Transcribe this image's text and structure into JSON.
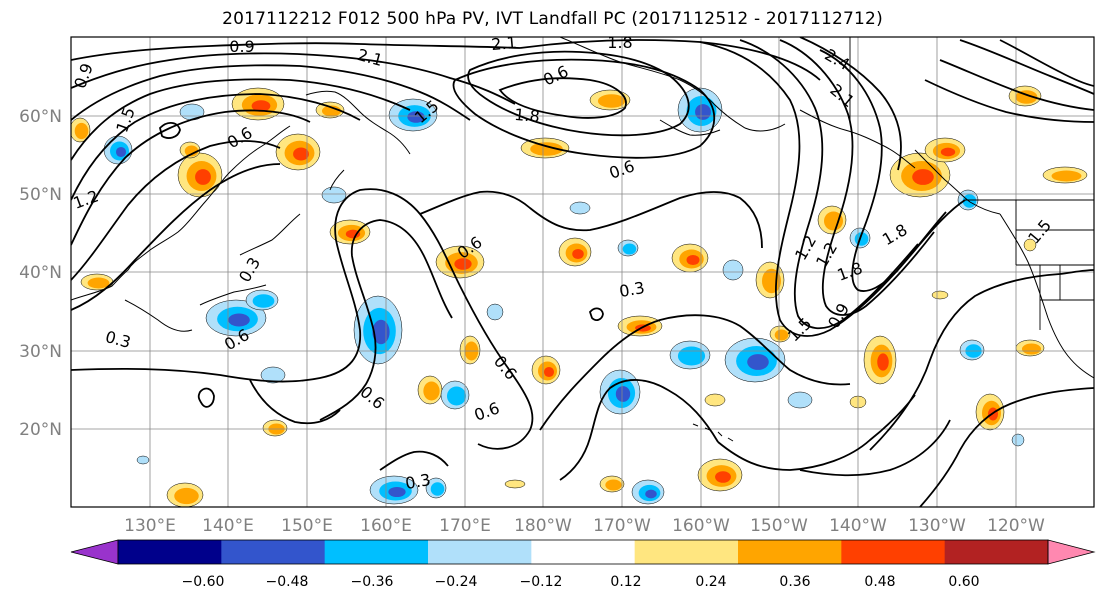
{
  "title": "2017112212 F012 500 hPa PV, IVT Landfall PC (2017112512 - 2017112712)",
  "map": {
    "lat_labels": [
      "60°N",
      "50°N",
      "40°N",
      "30°N",
      "20°N"
    ],
    "lon_labels": [
      "130°E",
      "140°E",
      "150°E",
      "160°E",
      "170°E",
      "180°W",
      "170°W",
      "160°W",
      "150°W",
      "140°W",
      "130°W",
      "120°W"
    ],
    "contour_labels": [
      "0.9",
      "2.1",
      "2.1",
      "1.8",
      "1.5",
      "0.6",
      "1.8",
      "2.4",
      "2.1",
      "0.9",
      "1.5",
      "1.2",
      "0.6",
      "0.6",
      "0.3",
      "0.3",
      "0.6",
      "0.6",
      "0.6",
      "0.6",
      "0.3",
      "0.3",
      "1.2",
      "1.2",
      "1.5",
      "1.8",
      "1.8",
      "0.9",
      "1.5",
      "0.6"
    ]
  },
  "colorbar": {
    "ticks": [
      "−0.60",
      "−0.48",
      "−0.36",
      "−0.24",
      "−0.12",
      "0.12",
      "0.24",
      "0.36",
      "0.48",
      "0.60"
    ],
    "colors": [
      "#9933cc",
      "#00008b",
      "#3355cc",
      "#00bfff",
      "#b0e0fa",
      "#ffffff",
      "#ffe680",
      "#ffa500",
      "#ff4000",
      "#b22222",
      "#ff88b0"
    ]
  },
  "shading_colors": {
    "light_blue": "#b0e0fa",
    "cyan": "#00bfff",
    "blue": "#3355cc",
    "light_orange": "#ffe680",
    "orange": "#ffa500",
    "red": "#ff4000"
  }
}
